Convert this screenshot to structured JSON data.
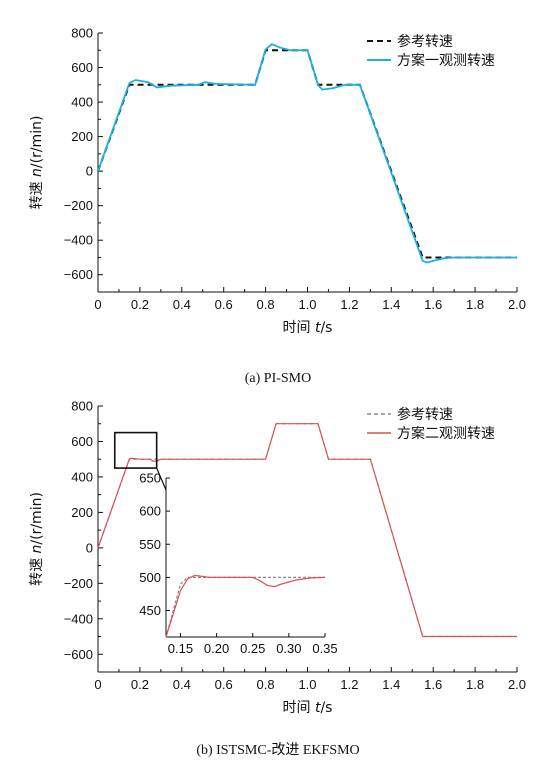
{
  "figure": {
    "captions": [
      "(a) PI-SMO",
      "(b) ISTSMC-改进 EKFSMO"
    ]
  },
  "chart_data": [
    {
      "type": "line",
      "caption": "(a) PI-SMO",
      "xlabel_prefix": "时间 ",
      "xlabel_var": "t",
      "xlabel_unit": "/s",
      "ylabel_prefix": "转速 ",
      "ylabel_var": "n",
      "ylabel_unit": "/(r/min)",
      "xlim": [
        0,
        2.0
      ],
      "ylim": [
        -700,
        800
      ],
      "xticks": [
        0,
        0.2,
        0.4,
        0.6,
        0.8,
        1.0,
        1.2,
        1.4,
        1.6,
        1.8,
        2.0
      ],
      "xtick_labels": [
        "0",
        "0.2",
        "0.4",
        "0.6",
        "0.8",
        "1.0",
        "1.2",
        "1.4",
        "1.6",
        "1.8",
        "2.0"
      ],
      "yticks": [
        -600,
        -400,
        -200,
        0,
        200,
        400,
        600,
        800
      ],
      "ytick_labels": [
        "−600",
        "−400",
        "−200",
        "0",
        "200",
        "400",
        "600",
        "800"
      ],
      "legend_position": "top-right",
      "grid": false,
      "series": [
        {
          "name": "参考转速",
          "color": "#111111",
          "style": "dashed",
          "x": [
            0,
            0.15,
            0.75,
            0.8,
            1.0,
            1.05,
            1.25,
            1.55,
            2.0
          ],
          "y": [
            0,
            500,
            500,
            700,
            700,
            500,
            500,
            -500,
            -500
          ]
        },
        {
          "name": "方案一观测转速",
          "color": "#1ab0e0",
          "style": "solid",
          "x": [
            0,
            0.15,
            0.18,
            0.24,
            0.28,
            0.35,
            0.48,
            0.51,
            0.56,
            0.75,
            0.8,
            0.83,
            0.87,
            0.92,
            1.0,
            1.05,
            1.07,
            1.12,
            1.18,
            1.25,
            1.55,
            1.57,
            1.6,
            1.65,
            1.7,
            2.0
          ],
          "y": [
            0,
            510,
            528,
            515,
            485,
            495,
            500,
            515,
            505,
            500,
            705,
            735,
            715,
            700,
            700,
            500,
            472,
            480,
            500,
            500,
            -520,
            -530,
            -520,
            -505,
            -500,
            -500
          ]
        }
      ]
    },
    {
      "type": "line",
      "caption": "(b) ISTSMC-改进 EKFSMO",
      "xlabel_prefix": "时间 ",
      "xlabel_var": "t",
      "xlabel_unit": "/s",
      "ylabel_prefix": "转速 ",
      "ylabel_var": "n",
      "ylabel_unit": "/(r/min)",
      "xlim": [
        0,
        2.0
      ],
      "ylim": [
        -700,
        800
      ],
      "xticks": [
        0,
        0.2,
        0.4,
        0.6,
        0.8,
        1.0,
        1.2,
        1.4,
        1.6,
        1.8,
        2.0
      ],
      "xtick_labels": [
        "0",
        "0.2",
        "0.4",
        "0.6",
        "0.8",
        "1.0",
        "1.2",
        "1.4",
        "1.6",
        "1.8",
        "2.0"
      ],
      "yticks": [
        -600,
        -400,
        -200,
        0,
        200,
        400,
        600,
        800
      ],
      "ytick_labels": [
        "−600",
        "−400",
        "−200",
        "0",
        "200",
        "400",
        "600",
        "800"
      ],
      "legend_position": "top-right",
      "grid": false,
      "zoom_region": {
        "x": [
          0.08,
          0.28
        ],
        "y": [
          450,
          650
        ]
      },
      "series": [
        {
          "name": "参考转速",
          "color": "#888888",
          "style": "dashed",
          "x": [
            0,
            0.15,
            0.8,
            0.85,
            1.05,
            1.1,
            1.3,
            1.55,
            2.0
          ],
          "y": [
            0,
            500,
            500,
            700,
            700,
            500,
            500,
            -500,
            -500
          ]
        },
        {
          "name": "方案二观测转速",
          "color": "#d9534f",
          "style": "solid",
          "x": [
            0,
            0.15,
            0.16,
            0.2,
            0.25,
            0.26,
            0.28,
            0.3,
            0.8,
            0.85,
            1.05,
            1.1,
            1.3,
            1.55,
            2.0
          ],
          "y": [
            0,
            502,
            505,
            500,
            500,
            490,
            488,
            500,
            500,
            700,
            700,
            500,
            500,
            -500,
            -500
          ]
        }
      ],
      "inset": {
        "xlim": [
          0.13,
          0.35
        ],
        "ylim": [
          410,
          650
        ],
        "xticks": [
          0.15,
          0.2,
          0.25,
          0.3,
          0.35
        ],
        "xtick_labels": [
          "0.15",
          "0.20",
          "0.25",
          "0.30",
          "0.35"
        ],
        "yticks": [
          450,
          500,
          550,
          600,
          650
        ],
        "ytick_labels": [
          "450",
          "500",
          "550",
          "600",
          "650"
        ],
        "series": [
          {
            "name": "参考转速",
            "color": "#888888",
            "style": "dashed",
            "x": [
              0.13,
              0.15,
              0.16,
              0.35
            ],
            "y": [
              410,
              490,
              500,
              500
            ]
          },
          {
            "name": "方案二观测转速",
            "color": "#d9534f",
            "style": "solid",
            "x": [
              0.13,
              0.15,
              0.16,
              0.17,
              0.19,
              0.22,
              0.25,
              0.26,
              0.27,
              0.28,
              0.29,
              0.31,
              0.33,
              0.35
            ],
            "y": [
              410,
              480,
              498,
              503,
              500,
              500,
              500,
              495,
              488,
              486,
              490,
              496,
              499,
              500
            ]
          }
        ]
      }
    }
  ]
}
